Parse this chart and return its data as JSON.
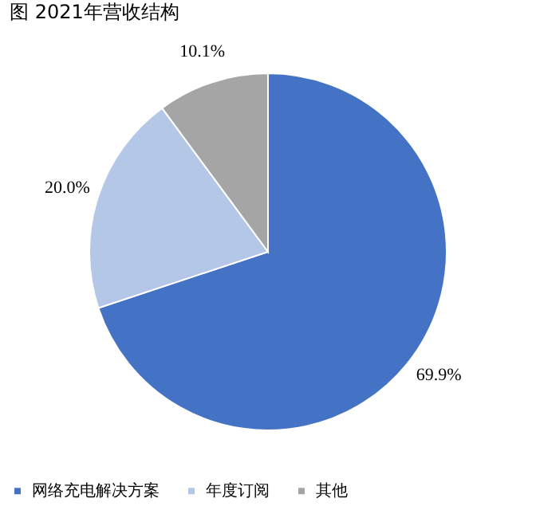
{
  "chart_data": {
    "type": "pie",
    "title": "图 2021年营收结构",
    "categories": [
      "网络充电解决方案",
      "年度订阅",
      "其他"
    ],
    "values": [
      69.9,
      20.0,
      10.1
    ],
    "colors": [
      "#4472c4",
      "#b4c7e7",
      "#a5a5a5"
    ],
    "value_labels": [
      "69.9%",
      "20.0%",
      "10.1%"
    ],
    "legend": "bottom"
  }
}
